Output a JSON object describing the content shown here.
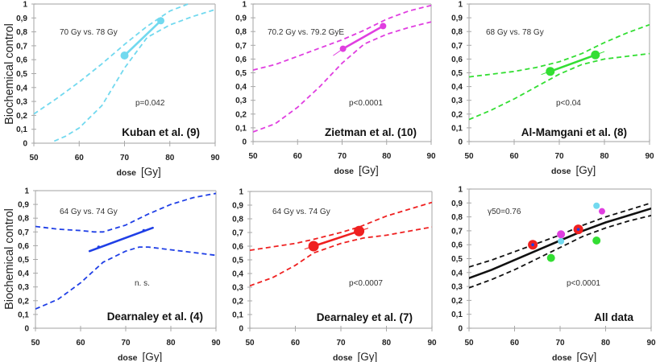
{
  "figure": {
    "ylabel": "Biochemical control",
    "xlabel_main": "dose",
    "xlabel_unit": "[Gy]"
  },
  "chart_data": [
    {
      "id": "kuban",
      "type": "line",
      "title": "Kuban et al. (9)",
      "comparison": "70 Gy vs. 78 Gy",
      "pvalue": "p=0.042",
      "color": "#72d9ef",
      "xlabel": "dose [Gy]",
      "ylabel": "Biochemical control",
      "xlim": [
        50,
        90
      ],
      "ylim": [
        0,
        1
      ],
      "xticks": [
        50,
        60,
        70,
        80,
        90
      ],
      "xtick_labels": [
        "50",
        "60",
        "70",
        "80",
        "90"
      ],
      "yticks": [
        0,
        0.1,
        0.2,
        0.3,
        0.4,
        0.5,
        0.6,
        0.7,
        0.8,
        0.9,
        1
      ],
      "ytick_labels": [
        "0",
        "0,1",
        "0,2",
        "0,3",
        "0,4",
        "0,5",
        "0,6",
        "0,7",
        "0,8",
        "0,9",
        "1"
      ],
      "series": [
        {
          "name": "upper-ci",
          "style": "dashed",
          "x": [
            50,
            55,
            60,
            65,
            70,
            75,
            80,
            84
          ],
          "y": [
            0.21,
            0.32,
            0.44,
            0.57,
            0.71,
            0.84,
            0.95,
            1.0
          ]
        },
        {
          "name": "lower-ci",
          "style": "dashed",
          "x": [
            54.5,
            57,
            60,
            65,
            70,
            75,
            80,
            85,
            90
          ],
          "y": [
            0.015,
            0.05,
            0.11,
            0.27,
            0.54,
            0.76,
            0.85,
            0.91,
            0.96
          ]
        },
        {
          "name": "trial-arms",
          "style": "solid",
          "x": [
            70,
            78
          ],
          "y": [
            0.63,
            0.88
          ]
        }
      ],
      "points": [
        {
          "x": 70,
          "y": 0.63,
          "size": 5
        },
        {
          "x": 78,
          "y": 0.88,
          "size": 4.5
        }
      ]
    },
    {
      "id": "zietman",
      "type": "line",
      "title": "Zietman et al. (10)",
      "comparison": "70.2 Gy vs. 79.2 GyE",
      "pvalue": "p<0.0001",
      "color": "#e03ee0",
      "xlabel": "dose [Gy]",
      "ylabel": "",
      "xlim": [
        50,
        90
      ],
      "ylim": [
        0,
        1
      ],
      "xticks": [
        50,
        60,
        70,
        80,
        90
      ],
      "xtick_labels": [
        "50",
        "60",
        "70",
        "80",
        "90"
      ],
      "yticks": [
        0,
        0.1,
        0.2,
        0.3,
        0.4,
        0.5,
        0.6,
        0.7,
        0.8,
        0.9,
        1
      ],
      "ytick_labels": [
        "0",
        "0,1",
        "0,2",
        "0,3",
        "0,4",
        "0,5",
        "0,6",
        "0,7",
        "0,8",
        "0,9",
        "1"
      ],
      "series": [
        {
          "name": "upper-ci",
          "style": "dashed",
          "x": [
            50,
            55,
            60,
            65,
            70,
            75,
            80,
            85,
            90
          ],
          "y": [
            0.52,
            0.56,
            0.62,
            0.68,
            0.74,
            0.81,
            0.89,
            0.95,
            0.99
          ]
        },
        {
          "name": "lower-ci",
          "style": "dashed",
          "x": [
            50,
            55,
            60,
            65,
            70,
            75,
            80,
            85,
            90
          ],
          "y": [
            0.07,
            0.13,
            0.25,
            0.4,
            0.57,
            0.71,
            0.78,
            0.83,
            0.87
          ]
        },
        {
          "name": "fit-extension",
          "style": "thin",
          "x": [
            68,
            70.2
          ],
          "y": [
            0.625,
            0.675
          ]
        },
        {
          "name": "trial-arms",
          "style": "solid",
          "x": [
            70.2,
            79.2
          ],
          "y": [
            0.675,
            0.84
          ]
        }
      ],
      "points": [
        {
          "x": 70.2,
          "y": 0.675,
          "size": 4
        },
        {
          "x": 79.2,
          "y": 0.84,
          "size": 4
        }
      ]
    },
    {
      "id": "al-mamgani",
      "type": "line",
      "title": "Al-Mamgani et al. (8)",
      "comparison": "68 Gy vs. 78 Gy",
      "pvalue": "p<0.04",
      "color": "#33de33",
      "xlabel": "dose [Gy]",
      "ylabel": "",
      "xlim": [
        50,
        90
      ],
      "ylim": [
        0,
        1
      ],
      "xticks": [
        50,
        60,
        70,
        80,
        90
      ],
      "xtick_labels": [
        "50",
        "60",
        "70",
        "80",
        "90"
      ],
      "yticks": [
        0,
        0.1,
        0.2,
        0.3,
        0.4,
        0.5,
        0.6,
        0.7,
        0.8,
        0.9,
        1
      ],
      "ytick_labels": [
        "0",
        "0,1",
        "0,2",
        "0,3",
        "0,4",
        "0,5",
        "0,6",
        "0,7",
        "0,8",
        "0,9",
        "1"
      ],
      "series": [
        {
          "name": "upper-ci",
          "style": "dashed",
          "x": [
            50,
            55,
            60,
            65,
            70,
            75,
            80,
            85,
            90
          ],
          "y": [
            0.47,
            0.49,
            0.51,
            0.54,
            0.58,
            0.64,
            0.72,
            0.79,
            0.85
          ]
        },
        {
          "name": "lower-ci",
          "style": "dashed",
          "x": [
            50,
            55,
            60,
            65,
            70,
            75,
            80,
            85,
            90
          ],
          "y": [
            0.16,
            0.23,
            0.31,
            0.4,
            0.49,
            0.56,
            0.6,
            0.62,
            0.64
          ]
        },
        {
          "name": "fit-extension",
          "style": "thin",
          "x": [
            66,
            80
          ],
          "y": [
            0.487,
            0.654
          ]
        },
        {
          "name": "trial-arms",
          "style": "solid",
          "x": [
            68,
            78
          ],
          "y": [
            0.51,
            0.63
          ]
        }
      ],
      "points": [
        {
          "x": 68,
          "y": 0.51,
          "size": 5.5
        },
        {
          "x": 78,
          "y": 0.63,
          "size": 5.5
        }
      ]
    },
    {
      "id": "dearnaley-4",
      "type": "line",
      "title": "Dearnaley et al. (4)",
      "comparison": "64 Gy vs. 74 Gy",
      "pvalue": "n. s.",
      "color": "#1f3fe6",
      "xlabel": "dose [Gy]",
      "ylabel": "Biochemical control",
      "xlim": [
        50,
        90
      ],
      "ylim": [
        0,
        1
      ],
      "xticks": [
        50,
        60,
        70,
        80,
        90
      ],
      "xtick_labels": [
        "50",
        "60",
        "70",
        "80",
        "90"
      ],
      "yticks": [
        0,
        0.1,
        0.2,
        0.3,
        0.4,
        0.5,
        0.6,
        0.7,
        0.8,
        0.9,
        1
      ],
      "ytick_labels": [
        "0",
        "0,1",
        "0,2",
        "0,3",
        "0,4",
        "0,5",
        "0,6",
        "0,7",
        "0,8",
        "0,9",
        "1"
      ],
      "series": [
        {
          "name": "upper-ci",
          "style": "dashed",
          "x": [
            50,
            55,
            60,
            63,
            65,
            70,
            75,
            80,
            85,
            90
          ],
          "y": [
            0.74,
            0.72,
            0.71,
            0.7,
            0.7,
            0.75,
            0.83,
            0.9,
            0.95,
            0.98
          ]
        },
        {
          "name": "lower-ci",
          "style": "dashed",
          "x": [
            50,
            55,
            60,
            65,
            70,
            73,
            75,
            80,
            85,
            90
          ],
          "y": [
            0.14,
            0.21,
            0.33,
            0.48,
            0.56,
            0.59,
            0.59,
            0.57,
            0.55,
            0.53
          ]
        },
        {
          "name": "trial-arms",
          "style": "solid",
          "x": [
            62,
            76
          ],
          "y": [
            0.56,
            0.73
          ]
        }
      ],
      "points": [
        {
          "x": 64,
          "y": 0.59,
          "size": 1.8
        },
        {
          "x": 74,
          "y": 0.71,
          "size": 1.8
        }
      ]
    },
    {
      "id": "dearnaley-7",
      "type": "line",
      "title": "Dearnaley et al. (7)",
      "comparison": "64 Gy vs. 74 Gy",
      "pvalue": "p<0.0007",
      "color": "#ef2020",
      "xlabel": "dose [Gy]",
      "ylabel": "",
      "xlim": [
        50,
        90
      ],
      "ylim": [
        0,
        1
      ],
      "xticks": [
        50,
        60,
        70,
        80,
        90
      ],
      "xtick_labels": [
        "50",
        "60",
        "70",
        "80",
        "90"
      ],
      "yticks": [
        0,
        0.1,
        0.2,
        0.3,
        0.4,
        0.5,
        0.6,
        0.7,
        0.8,
        0.9,
        1
      ],
      "ytick_labels": [
        "0",
        "0,1",
        "0,2",
        "0,3",
        "0,4",
        "0,5",
        "0,6",
        "0,7",
        "0,8",
        "0,9",
        "1"
      ],
      "series": [
        {
          "name": "upper-ci",
          "style": "dashed",
          "x": [
            50,
            60,
            64,
            70,
            74,
            80,
            90
          ],
          "y": [
            0.57,
            0.62,
            0.65,
            0.7,
            0.74,
            0.82,
            0.92
          ]
        },
        {
          "name": "lower-ci",
          "style": "dashed",
          "x": [
            50,
            55,
            60,
            64,
            70,
            75,
            80,
            90
          ],
          "y": [
            0.31,
            0.37,
            0.46,
            0.55,
            0.62,
            0.66,
            0.68,
            0.74
          ]
        },
        {
          "name": "fit-extension",
          "style": "thin",
          "x": [
            62,
            76
          ],
          "y": [
            0.578,
            0.732
          ]
        },
        {
          "name": "trial-arms",
          "style": "solid",
          "x": [
            64,
            74
          ],
          "y": [
            0.6,
            0.71
          ]
        }
      ],
      "points": [
        {
          "x": 64,
          "y": 0.6,
          "size": 6.5
        },
        {
          "x": 74,
          "y": 0.71,
          "size": 6.5
        }
      ]
    },
    {
      "id": "all-data",
      "type": "line",
      "title": "All data",
      "comparison": "γ50=0.76",
      "pvalue": "p<0.0001",
      "color": "#111111",
      "xlabel": "dose [Gy]",
      "ylabel": "",
      "xlim": [
        50,
        90
      ],
      "ylim": [
        0,
        1
      ],
      "xticks": [
        50,
        60,
        70,
        80,
        90
      ],
      "xtick_labels": [
        "50",
        "60",
        "70",
        "80",
        "90"
      ],
      "yticks": [
        0,
        0.1,
        0.2,
        0.3,
        0.4,
        0.5,
        0.6,
        0.7,
        0.8,
        0.9,
        1
      ],
      "ytick_labels": [
        "0",
        "0,1",
        "0,2",
        "0,3",
        "0,4",
        "0,5",
        "0,6",
        "0,7",
        "0,8",
        "0,9",
        "1"
      ],
      "series": [
        {
          "name": "upper-ci",
          "style": "dashed",
          "x": [
            50,
            55,
            60,
            65,
            70,
            75,
            80,
            85,
            90
          ],
          "y": [
            0.44,
            0.49,
            0.55,
            0.61,
            0.67,
            0.74,
            0.8,
            0.85,
            0.9
          ]
        },
        {
          "name": "lower-ci",
          "style": "dashed",
          "x": [
            50,
            55,
            60,
            65,
            70,
            75,
            80,
            85,
            90
          ],
          "y": [
            0.29,
            0.35,
            0.42,
            0.5,
            0.58,
            0.66,
            0.72,
            0.77,
            0.81
          ]
        },
        {
          "name": "dose-response-fit",
          "style": "solid",
          "x": [
            50,
            55,
            60,
            65,
            70,
            75,
            80,
            85,
            90
          ],
          "y": [
            0.36,
            0.42,
            0.49,
            0.56,
            0.63,
            0.7,
            0.76,
            0.81,
            0.86
          ]
        }
      ],
      "points": [
        {
          "study": "Dearnaley et al. (7)",
          "x": 64,
          "y": 0.6,
          "size": 6,
          "color": "#ef2020",
          "inner_color": "#1f3fe6"
        },
        {
          "study": "Dearnaley et al. (7)",
          "x": 74,
          "y": 0.71,
          "size": 6,
          "color": "#ef2020",
          "inner_color": "#1f3fe6"
        },
        {
          "study": "Zietman et al. (10)",
          "x": 70.2,
          "y": 0.675,
          "size": 5,
          "color": "#e03ee0"
        },
        {
          "study": "Zietman et al. (10)",
          "x": 79.2,
          "y": 0.84,
          "size": 4,
          "color": "#e03ee0"
        },
        {
          "study": "Kuban et al. (9)",
          "x": 70.2,
          "y": 0.625,
          "size": 4,
          "color": "#72d9ef"
        },
        {
          "study": "Kuban et al. (9)",
          "x": 78,
          "y": 0.88,
          "size": 4,
          "color": "#72d9ef"
        },
        {
          "study": "Al-Mamgani et al. (8)",
          "x": 68,
          "y": 0.505,
          "size": 5,
          "color": "#33de33"
        },
        {
          "study": "Al-Mamgani et al. (8)",
          "x": 78,
          "y": 0.63,
          "size": 5,
          "color": "#33de33"
        }
      ]
    }
  ]
}
